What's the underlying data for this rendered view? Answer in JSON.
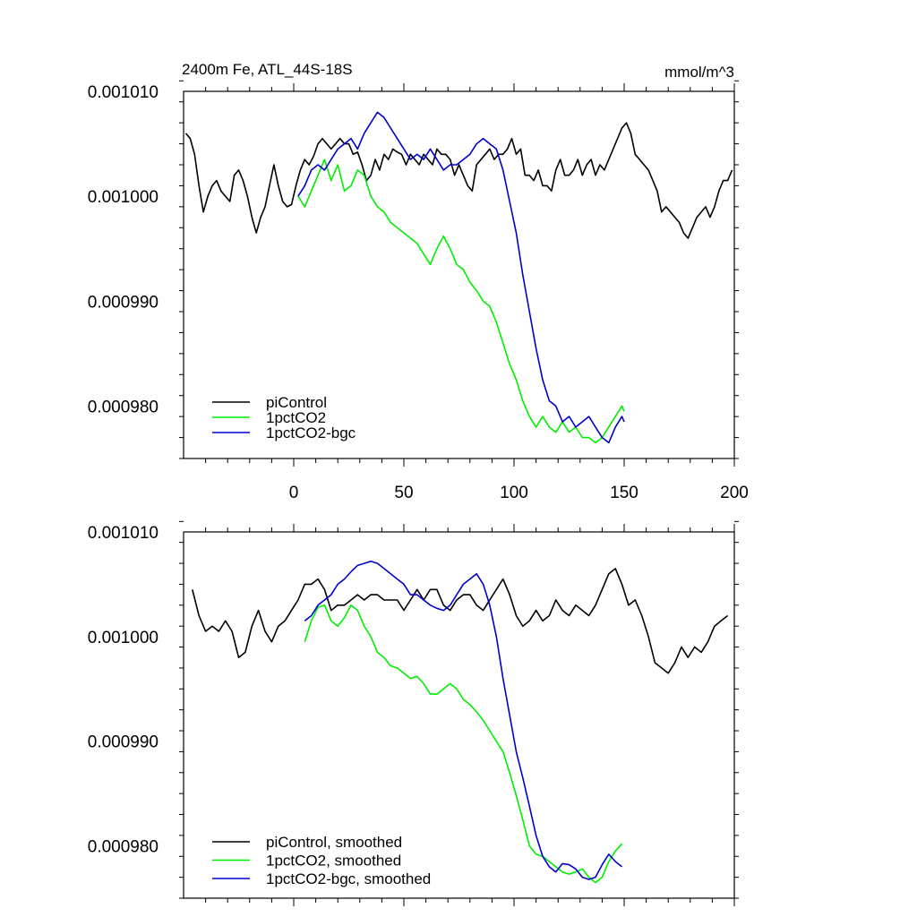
{
  "page": {
    "title": "2400m Fe, ATL_44S-18S",
    "units": "mmol/m^3"
  },
  "colors": {
    "piControl": "#000000",
    "1pctCO2": "#00ee00",
    "1pctCO2-bgc": "#0000cc",
    "axis": "#000000",
    "background": "#ffffff"
  },
  "chart_data": [
    {
      "type": "line",
      "title": "2400m Fe, ATL_44S-18S",
      "units_label": "mmol/m^3",
      "xlabel": "",
      "ylabel": "",
      "xlim": [
        -50,
        200
      ],
      "ylim": [
        0.000975,
        0.00101
      ],
      "xticks": [
        0,
        50,
        100,
        150,
        200
      ],
      "xtick_labels": [
        "0",
        "50",
        "100",
        "150",
        "200"
      ],
      "yticks": [
        0.00098,
        0.00099,
        0.001,
        0.00101
      ],
      "ytick_labels": [
        "0.000980",
        "0.000990",
        "0.001000",
        "0.001010"
      ],
      "grid": false,
      "legend_position": "bottom-left",
      "series": [
        {
          "name": "piControl",
          "color_key": "piControl",
          "x": [
            -49,
            -47,
            -45,
            -43,
            -41,
            -39,
            -37,
            -35,
            -33,
            -31,
            -29,
            -27,
            -25,
            -23,
            -21,
            -19,
            -17,
            -15,
            -13,
            -11,
            -9,
            -7,
            -5,
            -3,
            -1,
            1,
            3,
            5,
            7,
            9,
            11,
            13,
            15,
            17,
            19,
            21,
            23,
            25,
            27,
            29,
            31,
            33,
            35,
            37,
            39,
            41,
            43,
            45,
            47,
            49,
            51,
            53,
            55,
            57,
            59,
            61,
            63,
            65,
            67,
            69,
            71,
            73,
            75,
            77,
            79,
            81,
            83,
            85,
            87,
            89,
            91,
            93,
            95,
            97,
            99,
            101,
            103,
            105,
            107,
            109,
            111,
            113,
            115,
            117,
            119,
            121,
            123,
            125,
            127,
            129,
            131,
            133,
            135,
            137,
            139,
            141,
            143,
            145,
            147,
            149,
            151,
            153,
            155,
            157,
            159,
            161,
            163,
            165,
            167,
            169,
            171,
            173,
            175,
            177,
            179,
            181,
            183,
            185,
            187,
            189,
            191,
            193,
            195,
            197,
            199
          ],
          "values": [
            0.001006,
            0.0010055,
            0.001004,
            0.001001,
            0.0009985,
            0.001,
            0.001001,
            0.0010015,
            0.0010005,
            0.001,
            0.0009995,
            0.001002,
            0.0010025,
            0.0010015,
            0.001,
            0.000998,
            0.0009965,
            0.000998,
            0.000999,
            0.001001,
            0.001003,
            0.001001,
            0.0009995,
            0.000999,
            0.0009992,
            0.001001,
            0.0010025,
            0.0010035,
            0.001003,
            0.0010038,
            0.001005,
            0.0010055,
            0.001005,
            0.0010045,
            0.001005,
            0.0010055,
            0.001005,
            0.001005,
            0.001004,
            0.0010042,
            0.001003,
            0.0010015,
            0.001002,
            0.0010035,
            0.0010025,
            0.001004,
            0.0010035,
            0.0010045,
            0.0010042,
            0.001004,
            0.001003,
            0.001004,
            0.0010035,
            0.001003,
            0.001004,
            0.0010035,
            0.001003,
            0.0010045,
            0.001004,
            0.001004,
            0.0010035,
            0.001002,
            0.001003,
            0.001002,
            0.001001,
            0.0010005,
            0.001003,
            0.0010035,
            0.001004,
            0.0010045,
            0.0010035,
            0.001004,
            0.001004,
            0.0010045,
            0.0010055,
            0.001004,
            0.0010045,
            0.001002,
            0.001002,
            0.0010015,
            0.0010025,
            0.001001,
            0.001001,
            0.0010005,
            0.0010025,
            0.0010035,
            0.001002,
            0.001002,
            0.0010025,
            0.0010035,
            0.001002,
            0.001003,
            0.0010035,
            0.001002,
            0.001003,
            0.0010025,
            0.0010035,
            0.0010045,
            0.0010055,
            0.0010065,
            0.001007,
            0.001006,
            0.001004,
            0.0010035,
            0.001003,
            0.0010025,
            0.0010015,
            0.0010005,
            0.0009985,
            0.000999,
            0.0009985,
            0.000998,
            0.0009975,
            0.0009965,
            0.000996,
            0.000997,
            0.000998,
            0.0009985,
            0.000999,
            0.000998,
            0.000999,
            0.0010005,
            0.0010015,
            0.0010015,
            0.0010025
          ]
        },
        {
          "name": "1pctCO2",
          "color_key": "1pctCO2",
          "x": [
            2,
            5,
            8,
            11,
            14,
            17,
            20,
            23,
            26,
            29,
            32,
            35,
            38,
            41,
            44,
            47,
            50,
            53,
            56,
            59,
            62,
            65,
            68,
            71,
            74,
            77,
            80,
            83,
            86,
            89,
            92,
            95,
            98,
            101,
            104,
            107,
            110,
            113,
            116,
            119,
            122,
            125,
            128,
            131,
            134,
            137,
            140,
            143,
            146,
            149,
            150
          ],
          "values": [
            0.001,
            0.000999,
            0.0010005,
            0.001002,
            0.0010035,
            0.0010015,
            0.001003,
            0.0010005,
            0.001001,
            0.0010025,
            0.001002,
            0.001,
            0.000999,
            0.0009985,
            0.0009975,
            0.000997,
            0.0009965,
            0.000996,
            0.0009955,
            0.0009945,
            0.0009935,
            0.000995,
            0.0009962,
            0.000995,
            0.0009935,
            0.000993,
            0.0009918,
            0.000991,
            0.00099,
            0.0009895,
            0.000988,
            0.000986,
            0.000984,
            0.0009825,
            0.0009805,
            0.000979,
            0.000978,
            0.000979,
            0.000978,
            0.0009775,
            0.0009785,
            0.0009775,
            0.000978,
            0.000977,
            0.000977,
            0.0009765,
            0.000977,
            0.000978,
            0.000979,
            0.00098,
            0.0009795
          ]
        },
        {
          "name": "1pctCO2-bgc",
          "color_key": "1pctCO2-bgc",
          "x": [
            2,
            5,
            8,
            11,
            14,
            17,
            20,
            23,
            26,
            29,
            32,
            35,
            38,
            41,
            44,
            47,
            50,
            53,
            56,
            59,
            62,
            65,
            68,
            71,
            74,
            77,
            80,
            83,
            86,
            89,
            92,
            95,
            98,
            101,
            104,
            107,
            110,
            113,
            116,
            119,
            122,
            125,
            128,
            131,
            134,
            137,
            140,
            143,
            146,
            149,
            150
          ],
          "values": [
            0.001,
            0.001001,
            0.0010025,
            0.001003,
            0.0010025,
            0.0010035,
            0.0010045,
            0.001005,
            0.0010055,
            0.0010045,
            0.001006,
            0.001007,
            0.001008,
            0.0010075,
            0.0010065,
            0.0010055,
            0.0010045,
            0.0010035,
            0.001004,
            0.0010035,
            0.0010045,
            0.0010035,
            0.0010025,
            0.001003,
            0.001003,
            0.0010035,
            0.001004,
            0.001005,
            0.0010055,
            0.001005,
            0.0010045,
            0.0010025,
            0.0009995,
            0.0009965,
            0.0009925,
            0.000989,
            0.0009855,
            0.0009825,
            0.0009805,
            0.00098,
            0.0009785,
            0.000979,
            0.000978,
            0.0009785,
            0.000979,
            0.000978,
            0.000977,
            0.0009765,
            0.000978,
            0.000979,
            0.0009785
          ]
        }
      ]
    },
    {
      "type": "line",
      "title": "",
      "xlabel": "",
      "ylabel": "",
      "xlim": [
        -50,
        200
      ],
      "ylim": [
        0.000975,
        0.00101
      ],
      "xticks": [
        0,
        50,
        100,
        150,
        200
      ],
      "xtick_labels": [],
      "yticks": [
        0.00098,
        0.00099,
        0.001,
        0.00101
      ],
      "ytick_labels": [
        "0.000980",
        "0.000990",
        "0.001000",
        "0.001010"
      ],
      "grid": false,
      "legend_position": "bottom-left",
      "series": [
        {
          "name": "piControl, smoothed",
          "color_key": "piControl",
          "x": [
            -46,
            -43,
            -40,
            -37,
            -34,
            -31,
            -28,
            -25,
            -22,
            -19,
            -16,
            -13,
            -10,
            -7,
            -4,
            -1,
            2,
            5,
            8,
            11,
            14,
            17,
            20,
            23,
            26,
            29,
            32,
            35,
            38,
            41,
            44,
            47,
            50,
            53,
            56,
            59,
            62,
            65,
            68,
            71,
            74,
            77,
            80,
            83,
            86,
            89,
            92,
            95,
            98,
            101,
            104,
            107,
            110,
            113,
            116,
            119,
            122,
            125,
            128,
            131,
            134,
            137,
            140,
            143,
            146,
            149,
            152,
            155,
            158,
            161,
            164,
            167,
            170,
            173,
            176,
            179,
            182,
            185,
            188,
            191,
            194,
            197
          ],
          "values": [
            0.0010045,
            0.001002,
            0.0010005,
            0.001001,
            0.0010005,
            0.0010015,
            0.0010005,
            0.000998,
            0.0009985,
            0.001001,
            0.0010025,
            0.0010005,
            0.0009995,
            0.001001,
            0.0010015,
            0.0010025,
            0.0010035,
            0.001005,
            0.001005,
            0.0010055,
            0.0010045,
            0.0010025,
            0.001003,
            0.001003,
            0.0010035,
            0.001004,
            0.0010035,
            0.001004,
            0.001004,
            0.0010035,
            0.0010035,
            0.0010035,
            0.0010025,
            0.0010035,
            0.0010045,
            0.0010035,
            0.0010045,
            0.0010045,
            0.001003,
            0.0010025,
            0.0010035,
            0.001004,
            0.001004,
            0.001003,
            0.0010025,
            0.0010035,
            0.0010045,
            0.0010055,
            0.001004,
            0.001002,
            0.001001,
            0.0010015,
            0.0010025,
            0.0010015,
            0.001002,
            0.0010035,
            0.0010025,
            0.001002,
            0.001003,
            0.0010025,
            0.001002,
            0.001003,
            0.0010045,
            0.001006,
            0.0010065,
            0.001005,
            0.001003,
            0.0010035,
            0.001002,
            0.001,
            0.0009975,
            0.000997,
            0.0009965,
            0.0009975,
            0.000999,
            0.000998,
            0.000999,
            0.0009985,
            0.0009995,
            0.001001,
            0.0010015,
            0.001002
          ]
        },
        {
          "name": "1pctCO2, smoothed",
          "color_key": "1pctCO2",
          "x": [
            5,
            8,
            11,
            14,
            17,
            20,
            23,
            26,
            29,
            32,
            35,
            38,
            41,
            44,
            47,
            50,
            53,
            56,
            59,
            62,
            65,
            68,
            71,
            74,
            77,
            80,
            83,
            86,
            89,
            92,
            95,
            98,
            101,
            104,
            107,
            110,
            113,
            116,
            119,
            122,
            125,
            128,
            131,
            134,
            137,
            140,
            143,
            146,
            149
          ],
          "values": [
            0.0009995,
            0.0010015,
            0.0010028,
            0.001003,
            0.0010015,
            0.001001,
            0.0010018,
            0.001003,
            0.0010025,
            0.001001,
            0.001,
            0.0009985,
            0.000998,
            0.0009972,
            0.000997,
            0.0009965,
            0.000996,
            0.0009962,
            0.0009955,
            0.0009945,
            0.0009945,
            0.000995,
            0.0009955,
            0.000995,
            0.000994,
            0.0009935,
            0.0009928,
            0.000992,
            0.000991,
            0.00099,
            0.000989,
            0.000987,
            0.0009848,
            0.0009825,
            0.00098,
            0.0009792,
            0.000979,
            0.0009785,
            0.000978,
            0.0009775,
            0.0009773,
            0.0009775,
            0.0009778,
            0.000977,
            0.0009765,
            0.000977,
            0.0009785,
            0.0009795,
            0.0009802
          ]
        },
        {
          "name": "1pctCO2-bgc, smoothed",
          "color_key": "1pctCO2-bgc",
          "x": [
            5,
            8,
            11,
            14,
            17,
            20,
            23,
            26,
            29,
            32,
            35,
            38,
            41,
            44,
            47,
            50,
            53,
            56,
            59,
            62,
            65,
            68,
            71,
            74,
            77,
            80,
            83,
            86,
            89,
            92,
            95,
            98,
            101,
            104,
            107,
            110,
            113,
            116,
            119,
            122,
            125,
            128,
            131,
            134,
            137,
            140,
            143,
            146,
            149
          ],
          "values": [
            0.0010015,
            0.001002,
            0.001003,
            0.0010035,
            0.001004,
            0.001005,
            0.0010055,
            0.0010062,
            0.0010068,
            0.001007,
            0.0010072,
            0.001007,
            0.0010065,
            0.001006,
            0.0010055,
            0.001005,
            0.001004,
            0.001004,
            0.0010035,
            0.001003,
            0.0010027,
            0.0010025,
            0.001003,
            0.001004,
            0.001005,
            0.0010055,
            0.001006,
            0.001005,
            0.001003,
            0.001,
            0.000996,
            0.0009925,
            0.000989,
            0.0009865,
            0.0009838,
            0.000981,
            0.000979,
            0.000978,
            0.0009775,
            0.0009783,
            0.0009782,
            0.0009778,
            0.000977,
            0.0009768,
            0.000977,
            0.0009782,
            0.0009792,
            0.0009785,
            0.000978
          ]
        }
      ]
    }
  ]
}
